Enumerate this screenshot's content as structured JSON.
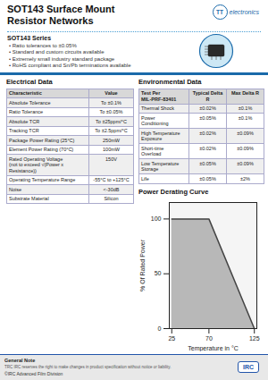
{
  "chart_data": {
    "type": "area",
    "title": "Power Derating Curve",
    "x": [
      25,
      70,
      125
    ],
    "values": [
      100,
      100,
      0
    ],
    "xlabel": "Temperature in °C",
    "ylabel": "% Of Rated Power",
    "xlim": [
      22,
      128
    ],
    "ylim": [
      0,
      115
    ],
    "xticks": [
      25,
      70,
      125
    ],
    "yticks": [
      0,
      50,
      100
    ],
    "colors": [
      "#b8b8b8",
      "#444444"
    ],
    "grid": false,
    "annotations": [
      "SOT143 Surface Mount",
      "Resistor Networks",
      "TT",
      "electronics",
      "SOT143 Series",
      [
        "• Ratio tolerances to ±0.05%",
        "• Standard and custom circuits available",
        "• Extremely small industry standard package",
        "• RoHS compliant and Sn/Pb terminations available"
      ],
      "Electrical Data",
      [
        [
          "Characteristic",
          "Value"
        ],
        [
          "Absolute Tolerance",
          "To ±0.1%"
        ],
        [
          "Ratio Tolerance",
          "To ±0.05%"
        ],
        [
          "Absolute TCR",
          "To ±25ppm/°C"
        ],
        [
          "Tracking TCR",
          "To ±2.5ppm/°C"
        ],
        [
          "Package Power Rating (25°C)",
          "250mW"
        ],
        [
          "Element Power Rating (70°C)",
          "100mW"
        ],
        [
          "Rated Operating Voltage\n(not to exceed √(Power x Resistance))",
          "150V"
        ],
        [
          "Operating Temperature Range",
          "-55°C to +125°C"
        ],
        [
          "Noise",
          "<-30dB"
        ],
        [
          "Substrate Material",
          "Silicon"
        ]
      ],
      "Environmental Data",
      [
        [
          "Test Per\nMIL-PRF-83401",
          "Typical Delta R",
          "Max Delta R"
        ],
        [
          "Thermal Shock",
          "±0.02%",
          "±0.1%"
        ],
        [
          "Power\nConditioning",
          "±0.05%",
          "±0.1%"
        ],
        [
          "High Temperature\nExposure",
          "±0.02%",
          "±0.09%"
        ],
        [
          "Short-time\nOverload",
          "±0.02%",
          "±0.09%"
        ],
        [
          "Low Temperature\nStorage",
          "±0.05%",
          "±0.09%"
        ],
        [
          "Life",
          "±0.05%",
          "±2%"
        ]
      ],
      "General Note",
      "TRC IRC reserves the right to make changes in product specification without notice or liability.",
      "©IRC Advanced Film Division",
      "IRC"
    ]
  }
}
